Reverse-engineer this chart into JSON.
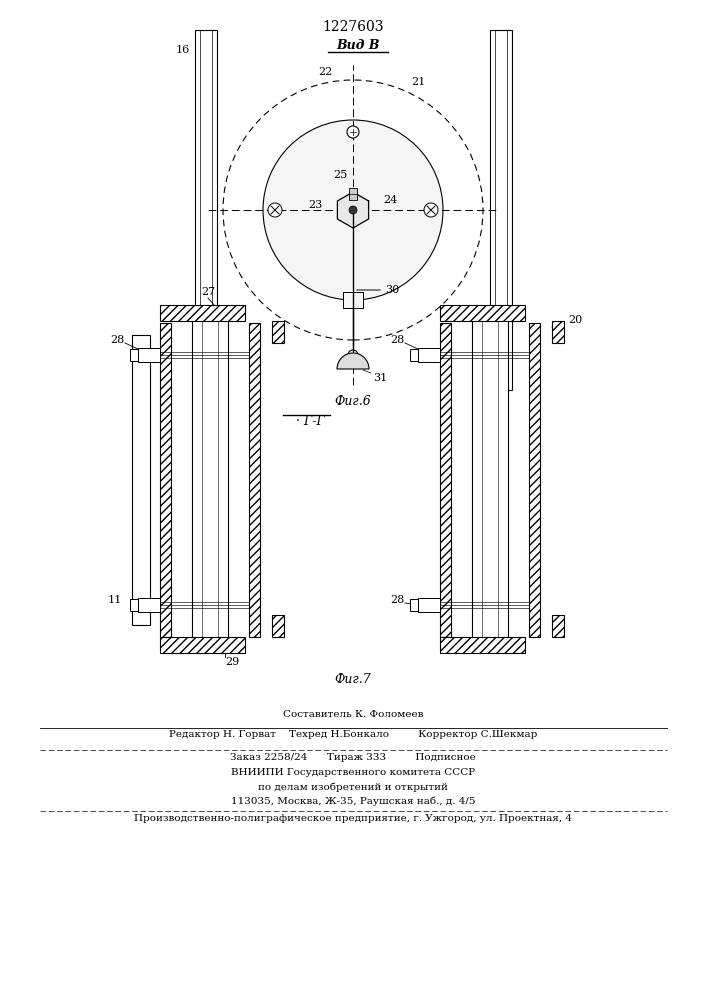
{
  "patent_number": "1227603",
  "fig6_label": "Фиг.6",
  "fig7_label": "Фиг.7",
  "vid_label": "Вид В",
  "section_label": "Г-Г",
  "bg_color": "#ffffff",
  "line_color": "#000000",
  "footer_lines": [
    "Составитель К. Фоломеев",
    "Редактор Н. Горват    Техред Н.Бонкало         Корректор С.Шекмар",
    "Заказ 2258/24      Тираж 333         Подписное",
    "ВНИИПИ Государственного комитета СССР",
    "по делам изобретений и открытий",
    "113035, Москва, Ж-35, Раушская наб., д. 4/5",
    "Производственно-полиграфическое предприятие, г. Ужгород, ул. Проектная, 4"
  ]
}
